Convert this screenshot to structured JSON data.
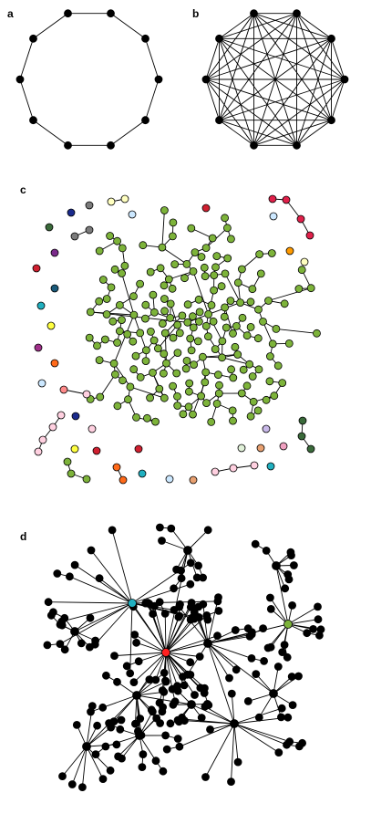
{
  "panels": [
    {
      "label": "a",
      "kind": "ring-lattice",
      "n": 10,
      "node_color": "#000000"
    },
    {
      "label": "b",
      "kind": "complete-graph",
      "n": 10,
      "node_color": "#000000"
    },
    {
      "label": "c",
      "kind": "random-graph-components",
      "giant_component_color": "#7db33a",
      "component_colors": [
        "#7db33a",
        "#e0204a",
        "#ff1a1a",
        "#1a2a8c",
        "#7b7b7b",
        "#ffffc0",
        "#cce8ff",
        "#ff9a00",
        "#3a6a3a",
        "#7a2a8a",
        "#3a4a9a",
        "#d02030",
        "#1a5a7a",
        "#20b0c0",
        "#ffff40",
        "#a0308a",
        "#ff6a1a",
        "#ff8a8a",
        "#ffd0e0",
        "#c8b8e8",
        "#f0a0c0",
        "#e0f0d8",
        "#e8a070",
        "#3a6a3a"
      ]
    },
    {
      "label": "d",
      "kind": "scale-free-tree",
      "hub_colors": [
        "#ff2020",
        "#20b0c0",
        "#7db33a"
      ],
      "node_color": "#000000"
    }
  ]
}
